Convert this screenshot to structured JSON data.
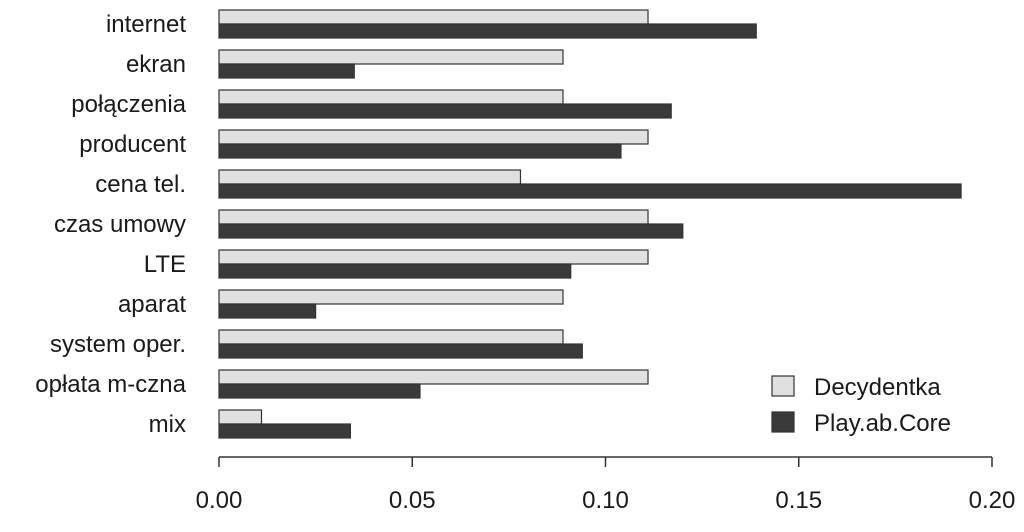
{
  "chart_data": {
    "type": "bar",
    "orientation": "horizontal",
    "categories": [
      "internet",
      "ekran",
      "połączenia",
      "producent",
      "cena tel.",
      "czas umowy",
      "LTE",
      "aparat",
      "system oper.",
      "opłata m-czna",
      "mix"
    ],
    "series": [
      {
        "name": "Decydentka",
        "color": "#e0e0e0",
        "values": [
          0.111,
          0.089,
          0.089,
          0.111,
          0.078,
          0.111,
          0.111,
          0.089,
          0.089,
          0.111,
          0.011
        ]
      },
      {
        "name": "Play.ab.Core",
        "color": "#3a3a3a",
        "values": [
          0.139,
          0.035,
          0.117,
          0.104,
          0.192,
          0.12,
          0.091,
          0.025,
          0.094,
          0.052,
          0.034
        ]
      }
    ],
    "xlim": [
      0,
      0.2
    ],
    "xticks": [
      "0.00",
      "0.05",
      "0.10",
      "0.15",
      "0.20"
    ],
    "xtick_values": [
      0,
      0.05,
      0.1,
      0.15,
      0.2
    ],
    "title": "",
    "xlabel": "",
    "ylabel": "",
    "legend_position": "bottom-right",
    "grid": false
  }
}
